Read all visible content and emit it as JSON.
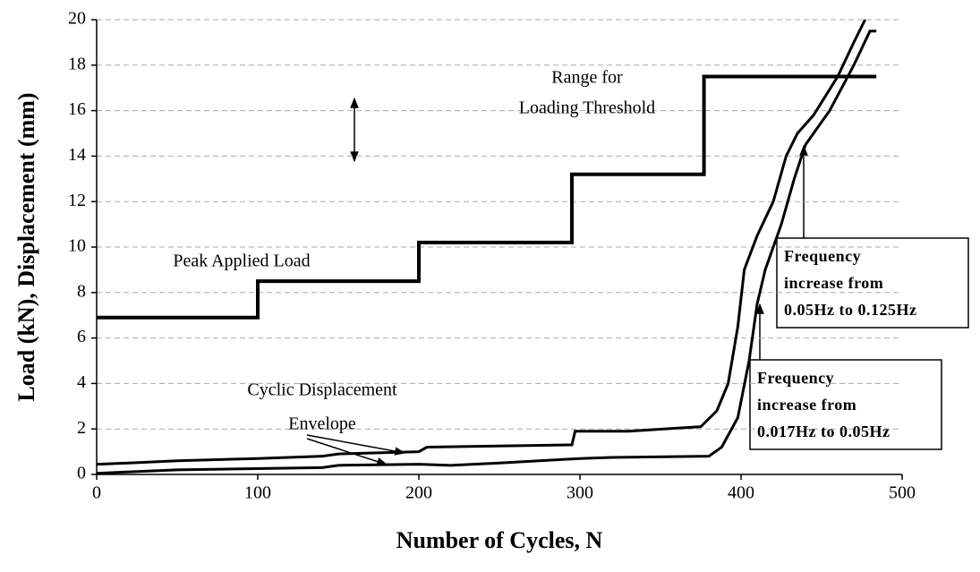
{
  "chart_data": {
    "type": "line",
    "x_label": "Number of Cycles, N",
    "y_label": "Load (kN), Displacement (mm)",
    "xlim": [
      0,
      500
    ],
    "xticks": [
      0,
      100,
      200,
      300,
      400,
      500
    ],
    "ylim": [
      0,
      20
    ],
    "yticks": [
      0,
      2,
      4,
      6,
      8,
      10,
      12,
      14,
      16,
      18,
      20
    ],
    "grid": true,
    "series": [
      {
        "color": "#000000",
        "x": [
          0,
          100,
          100,
          200,
          200,
          295,
          295,
          377,
          377,
          484
        ],
        "values": [
          6.9,
          6.9,
          8.5,
          8.5,
          10.2,
          10.2,
          13.2,
          13.2,
          17.5,
          17.5
        ]
      },
      {
        "color": "#000000",
        "x": [
          0,
          20,
          50,
          100,
          140,
          150,
          200,
          205,
          295,
          297,
          330,
          375,
          385,
          392,
          398,
          402,
          410,
          420,
          428,
          435,
          445,
          460,
          470,
          477
        ],
        "values": [
          0.45,
          0.5,
          0.6,
          0.7,
          0.8,
          0.9,
          1.0,
          1.2,
          1.3,
          1.9,
          1.9,
          2.1,
          2.8,
          4,
          6.5,
          9,
          10.5,
          12,
          14,
          15,
          15.8,
          17.5,
          19,
          20
        ]
      },
      {
        "color": "#000000",
        "x": [
          0,
          50,
          140,
          150,
          200,
          220,
          250,
          300,
          320,
          380,
          388,
          398,
          405,
          410,
          415,
          425,
          433,
          440,
          455,
          470,
          480,
          484
        ],
        "values": [
          0.05,
          0.2,
          0.3,
          0.4,
          0.45,
          0.4,
          0.5,
          0.7,
          0.75,
          0.8,
          1.2,
          2.5,
          5,
          7.5,
          9,
          11,
          13,
          14.5,
          16,
          18,
          19.5,
          19.5
        ]
      }
    ],
    "annotations": [
      {
        "lines": [
          "Range for",
          "Loading Threshold"
        ]
      },
      {
        "lines": [
          "Peak Applied Load"
        ]
      },
      {
        "lines": [
          "Cyclic Displacement",
          "Envelope"
        ]
      },
      {
        "lines": [
          "Frequency",
          "increase from",
          "0.05Hz to 0.125Hz"
        ]
      },
      {
        "lines": [
          "Frequency",
          "increase from",
          "0.017Hz to 0.05Hz"
        ]
      }
    ]
  }
}
